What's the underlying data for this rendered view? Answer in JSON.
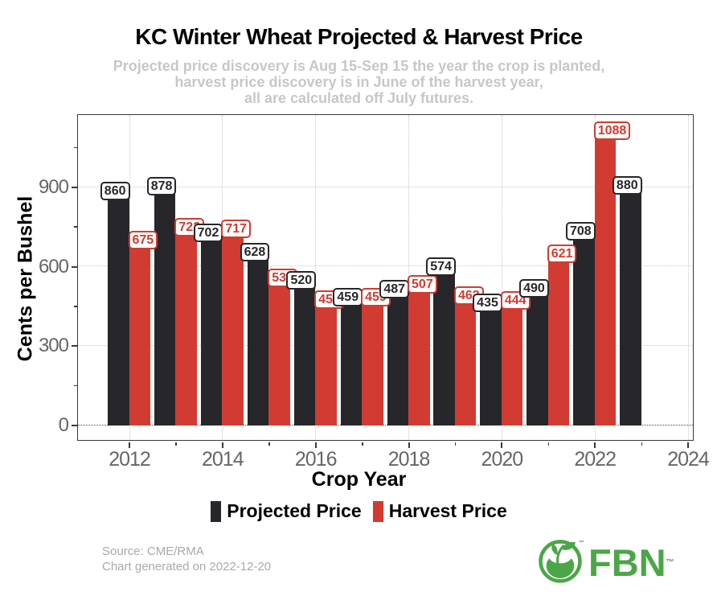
{
  "chart_data": {
    "type": "bar",
    "title": "KC Winter Wheat Projected & Harvest Price",
    "subtitle_lines": [
      "Projected price discovery is Aug 15-Sep 15 the year the crop is planted,",
      "harvest price discovery is in June of the harvest year,",
      "all are calculated off July futures."
    ],
    "xlabel": "Crop Year",
    "ylabel": "Cents per Bushel",
    "categories": [
      2012,
      2013,
      2014,
      2015,
      2016,
      2017,
      2018,
      2019,
      2020,
      2021,
      2022,
      2023
    ],
    "series": [
      {
        "name": "Projected Price",
        "color": "#27272b",
        "values": [
          860,
          878,
          702,
          628,
          520,
          459,
          487,
          574,
          435,
          490,
          708,
          880
        ]
      },
      {
        "name": "Harvest Price",
        "color": "#d23b31",
        "values": [
          675,
          722,
          717,
          531,
          450,
          459,
          507,
          463,
          444,
          621,
          1088,
          null
        ]
      }
    ],
    "x_ticks": [
      2012,
      2014,
      2016,
      2018,
      2020,
      2022,
      2024
    ],
    "x_minor_ticks": [
      2013,
      2015,
      2017,
      2019,
      2021,
      2023
    ],
    "y_ticks": [
      0,
      300,
      600,
      900
    ],
    "y_minor_ticks": [
      150,
      450,
      750,
      1050
    ],
    "ylim": [
      0,
      1174
    ],
    "grid": "dotted",
    "legend_position": "bottom"
  },
  "footer": {
    "source": "Source: CME/RMA",
    "generated": "Chart generated on 2022-12-20"
  },
  "logo": {
    "text": "FBN",
    "trademark": "™",
    "color": "#4ba647"
  }
}
